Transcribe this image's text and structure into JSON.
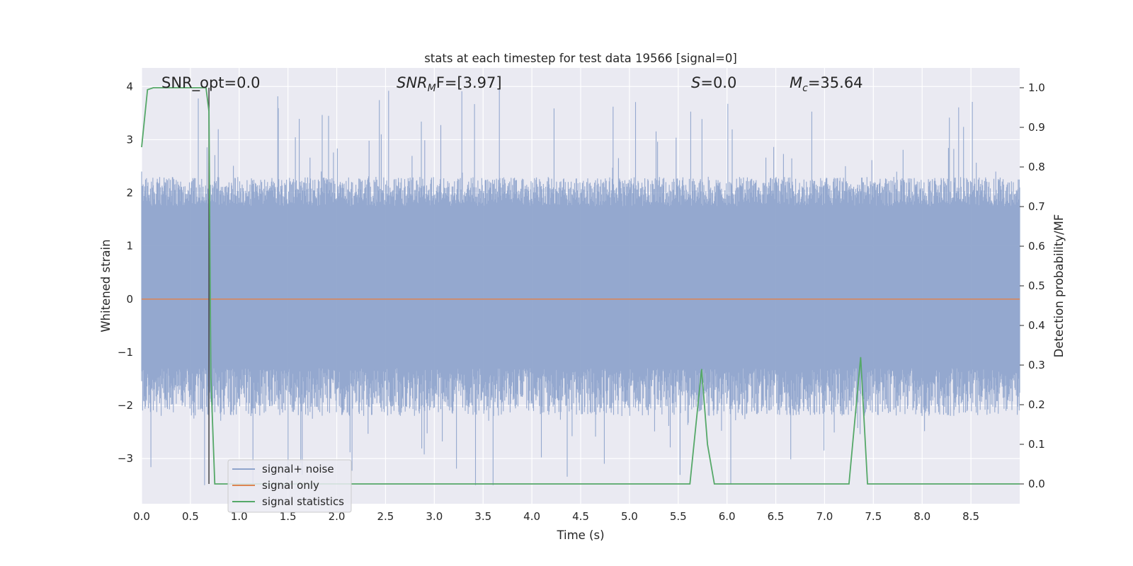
{
  "chart_data": {
    "type": "line",
    "title": "stats at each timestep for test data 19566 [signal=0]",
    "xlabel": "Time (s)",
    "ylabel": "Whitened strain",
    "y2label": "Detection probability/MF",
    "xlim": [
      0.0,
      9.0
    ],
    "ylim": [
      -3.85,
      4.35
    ],
    "y2lim": [
      -0.05,
      1.05
    ],
    "x_ticks": [
      "0.0",
      "0.5",
      "1.0",
      "1.5",
      "2.0",
      "2.5",
      "3.0",
      "3.5",
      "4.0",
      "4.5",
      "5.0",
      "5.5",
      "6.0",
      "6.5",
      "7.0",
      "7.5",
      "8.0",
      "8.5"
    ],
    "y_ticks": [
      "−3",
      "−2",
      "−1",
      "0",
      "1",
      "2",
      "3",
      "4"
    ],
    "y2_ticks": [
      "0.0",
      "0.1",
      "0.2",
      "0.3",
      "0.4",
      "0.5",
      "0.6",
      "0.7",
      "0.8",
      "0.9",
      "1.0"
    ],
    "grid": true,
    "legend_position": "lower-left",
    "annotations": {
      "snr_opt": "SNR_opt=0.0",
      "snr_mf_main": "SNR",
      "snr_mf_sub": "M",
      "snr_mf_rest": "F=[3.97]",
      "s_main": "S",
      "s_rest": "=0.0",
      "mc_main": "M",
      "mc_sub": "c",
      "mc_rest": "=35.64"
    },
    "vertical_marker_x": 0.69,
    "series": [
      {
        "name": "signal+ noise",
        "axis": "left",
        "color": "#8fa4cc",
        "style": "dense-noise",
        "envelope_low": -1.3,
        "envelope_high": 1.75,
        "spike_max": 4.0,
        "spike_min": -3.5,
        "n_samples": 1800
      },
      {
        "name": "signal only",
        "axis": "left",
        "color": "#dd8452",
        "x": [
          0.0,
          9.0
        ],
        "y": [
          0.0,
          0.0
        ]
      },
      {
        "name": "signal statistics",
        "axis": "right",
        "color": "#55a868",
        "x": [
          0.0,
          0.06,
          0.12,
          0.5,
          0.6,
          0.66,
          0.69,
          0.7,
          0.71,
          0.75,
          5.62,
          5.74,
          5.8,
          5.87,
          7.25,
          7.37,
          7.44,
          9.0
        ],
        "y": [
          0.85,
          0.995,
          1.0,
          1.0,
          1.0,
          1.0,
          0.94,
          0.6,
          0.27,
          0.0,
          0.0,
          0.29,
          0.1,
          0.0,
          0.0,
          0.32,
          0.0,
          0.0
        ]
      }
    ]
  }
}
